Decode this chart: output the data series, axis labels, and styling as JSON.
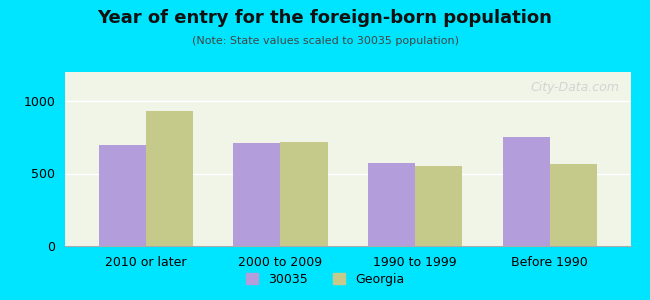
{
  "title": "Year of entry for the foreign-born population",
  "subtitle": "(Note: State values scaled to 30035 population)",
  "categories": [
    "2010 or later",
    "2000 to 2009",
    "1990 to 1999",
    "Before 1990"
  ],
  "values_30035": [
    700,
    710,
    575,
    750
  ],
  "values_georgia": [
    930,
    715,
    555,
    565
  ],
  "bar_color_30035": "#b39ddb",
  "bar_color_georgia": "#c5c98a",
  "background_outer": "#00e5ff",
  "background_plot": "#f0f5e8",
  "ylim": [
    0,
    1200
  ],
  "yticks": [
    0,
    500,
    1000
  ],
  "bar_width": 0.35,
  "legend_labels": [
    "30035",
    "Georgia"
  ],
  "watermark": "City-Data.com"
}
